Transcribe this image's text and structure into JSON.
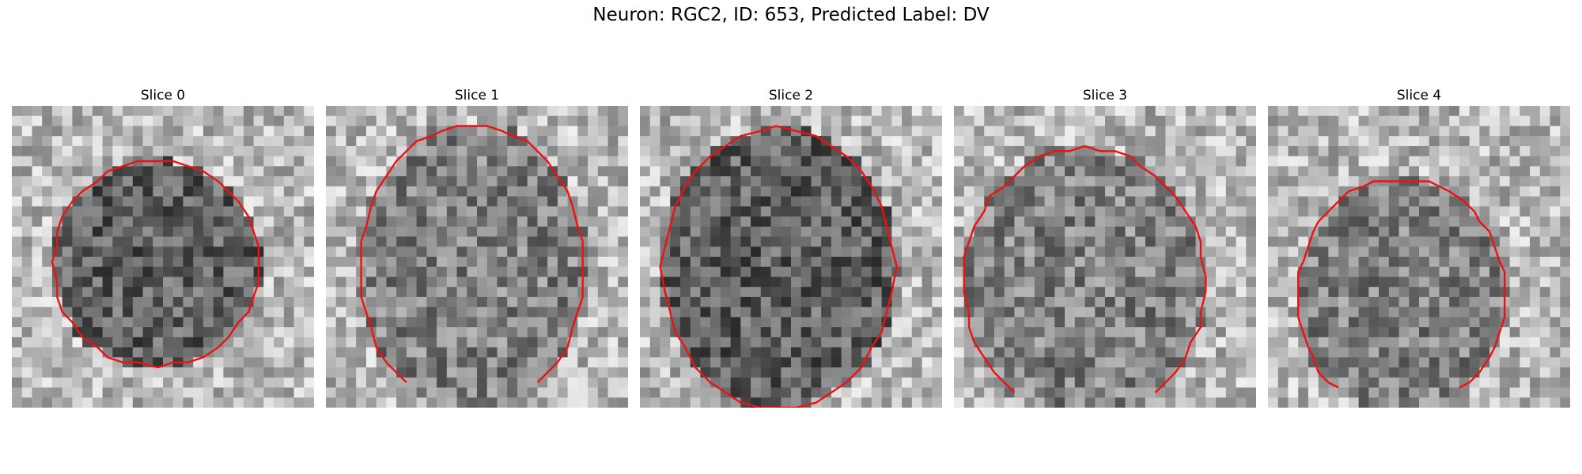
{
  "figure": {
    "title": "Neuron: RGC2, ID: 653, Predicted Label: DV"
  },
  "colors": {
    "contour": "#ee1111",
    "background": "#ffffff"
  },
  "panels": [
    {
      "title": "Slice 0",
      "seed": 11,
      "dark": true
    },
    {
      "title": "Slice 1",
      "seed": 23,
      "dark": false
    },
    {
      "title": "Slice 2",
      "seed": 37,
      "dark": true
    },
    {
      "title": "Slice 3",
      "seed": 41,
      "dark": false
    },
    {
      "title": "Slice 4",
      "seed": 59,
      "dark": false
    }
  ]
}
